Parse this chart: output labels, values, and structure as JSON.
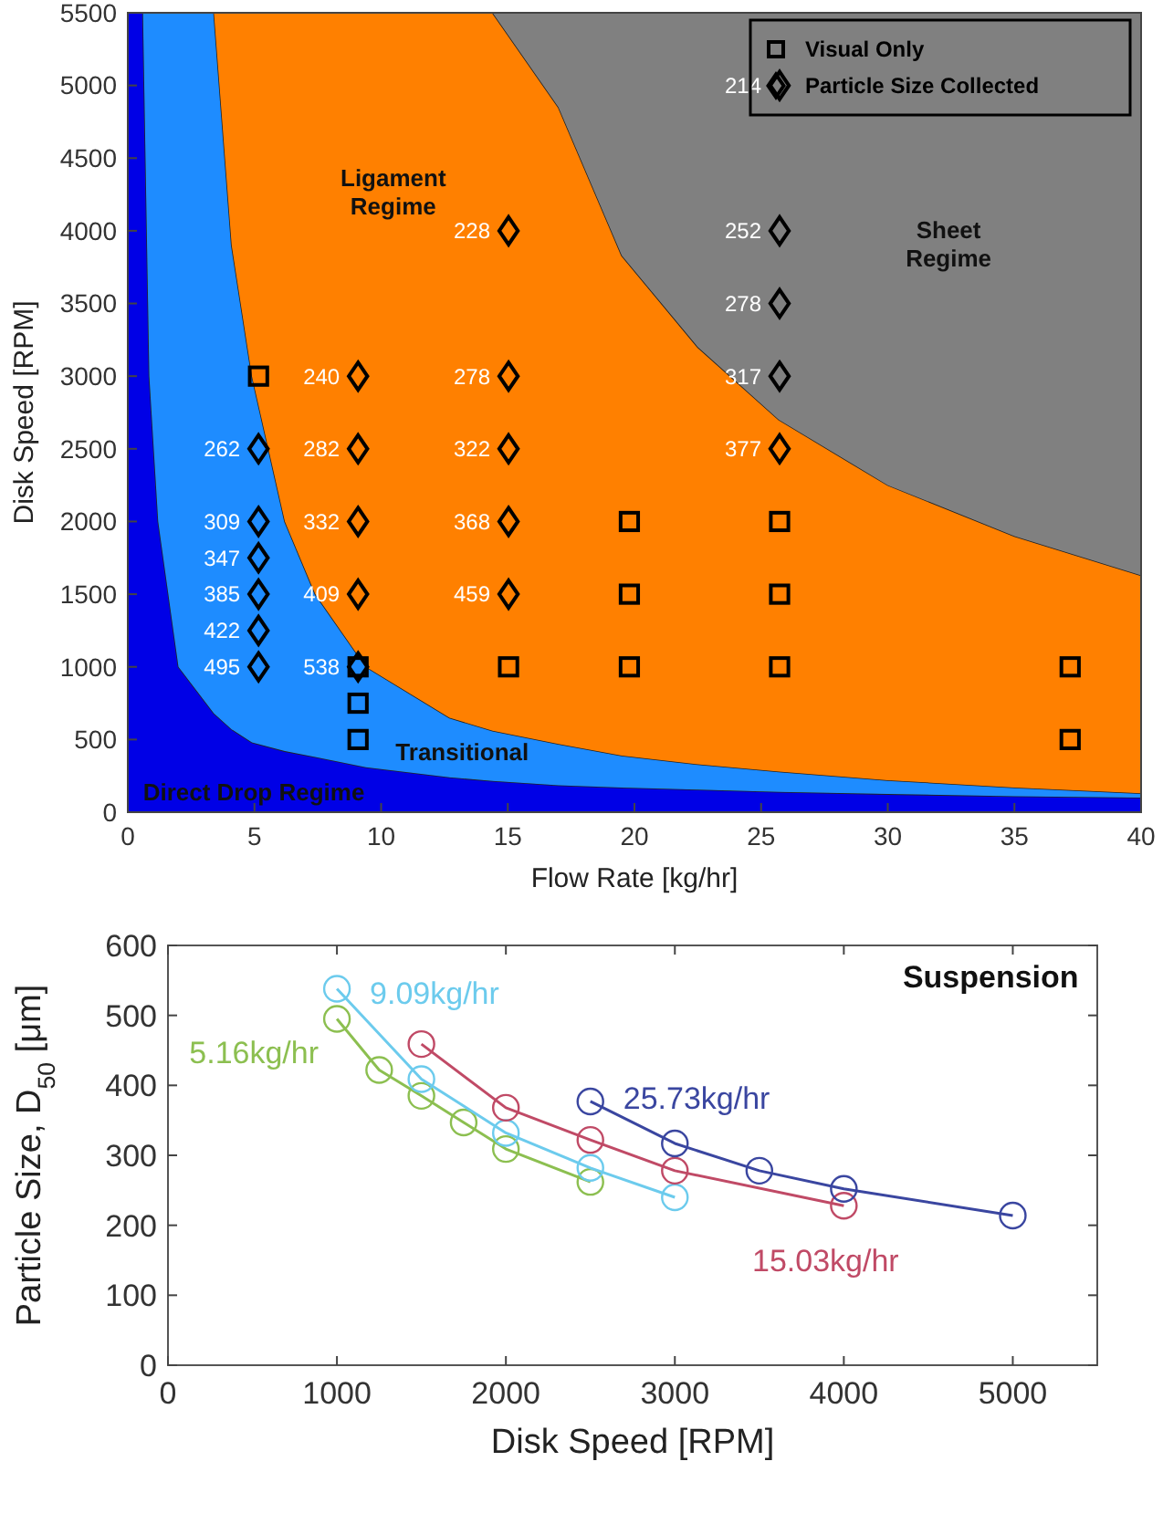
{
  "chart_data": [
    {
      "type": "area",
      "stacked": true,
      "xlabel": "Flow Rate [kg/hr]",
      "ylabel": "Disk Speed [RPM]",
      "xlim": [
        0,
        40
      ],
      "xticks": [
        0,
        5,
        10,
        15,
        20,
        25,
        30,
        35,
        40
      ],
      "ylim": [
        0,
        5500
      ],
      "yticks": [
        0,
        500,
        1000,
        1500,
        2000,
        2500,
        3000,
        3500,
        4000,
        4500,
        5000,
        5500
      ],
      "legend": "top right",
      "x": [
        0,
        0.6,
        0.85,
        1.2,
        2,
        3.4,
        4.1,
        4.9,
        6.2,
        7.4,
        9.4,
        12.7,
        14.4,
        17,
        19.5,
        22.5,
        25.7,
        30,
        35,
        40
      ],
      "annotations": [
        "Ligament\nRegime",
        "Sheet\nRegime",
        "Transitional",
        "Direct Drop Regime",
        {
          "text": "262",
          "x": 5.16,
          "y": 2500
        },
        {
          "text": "309",
          "x": 5.16,
          "y": 2000
        },
        {
          "text": "347",
          "x": 5.16,
          "y": 1750
        },
        {
          "text": "385",
          "x": 5.16,
          "y": 1500
        },
        {
          "text": "422",
          "x": 5.16,
          "y": 1250
        },
        {
          "text": "495",
          "x": 5.16,
          "y": 1000
        },
        {
          "text": "240",
          "x": 9.09,
          "y": 3000
        },
        {
          "text": "282",
          "x": 9.09,
          "y": 2500
        },
        {
          "text": "332",
          "x": 9.09,
          "y": 2000
        },
        {
          "text": "409",
          "x": 9.09,
          "y": 1500
        },
        {
          "text": "538",
          "x": 9.09,
          "y": 1000
        },
        {
          "text": "228",
          "x": 15.03,
          "y": 4000
        },
        {
          "text": "278",
          "x": 15.03,
          "y": 3000
        },
        {
          "text": "322",
          "x": 15.03,
          "y": 2500
        },
        {
          "text": "368",
          "x": 15.03,
          "y": 2000
        },
        {
          "text": "459",
          "x": 15.03,
          "y": 1500
        },
        {
          "text": "214",
          "x": 25.73,
          "y": 5000
        },
        {
          "text": "252",
          "x": 25.73,
          "y": 4000
        },
        {
          "text": "278",
          "x": 25.73,
          "y": 3500
        },
        {
          "text": "317",
          "x": 25.73,
          "y": 3000
        },
        {
          "text": "377",
          "x": 25.73,
          "y": 2500
        }
      ],
      "series": [
        {
          "color": "#0000e6",
          "values": [
            5500,
            5500,
            3000,
            2000,
            1000,
            680,
            570,
            480,
            420,
            380,
            310,
            240,
            215,
            185,
            170,
            155,
            140,
            125,
            110,
            100
          ]
        },
        {
          "color": "#1e8cff",
          "values": [
            0,
            0,
            2500,
            3500,
            4500,
            4820,
            3330,
            2520,
            1580,
            1120,
            690,
            410,
            345,
            285,
            220,
            175,
            140,
            95,
            60,
            30
          ]
        },
        {
          "color": "#ff8000",
          "values": [
            0,
            0,
            0,
            0,
            0,
            0,
            1600,
            2500,
            3500,
            4000,
            4500,
            4850,
            4940,
            4380,
            3440,
            2870,
            2420,
            2030,
            1730,
            1500
          ]
        },
        {
          "color": "#808080",
          "values": [
            0,
            0,
            0,
            0,
            0,
            0,
            0,
            0,
            0,
            0,
            0,
            0,
            0,
            650,
            1670,
            2300,
            2800,
            3250,
            3600,
            3870
          ]
        },
        {
          "type": "scatter",
          "name": "Visual Only",
          "marker": "square",
          "color": "#000000",
          "x": [
            5.16,
            9.09,
            9.09,
            9.09,
            15.03,
            19.8,
            19.8,
            19.8,
            25.73,
            25.73,
            25.73,
            37.2,
            37.2
          ],
          "values": [
            3000,
            1000,
            750,
            500,
            1000,
            2000,
            1500,
            1000,
            2000,
            1500,
            1000,
            1000,
            500
          ]
        },
        {
          "type": "scatter",
          "name": "Particle Size Collected",
          "marker": "diamond",
          "color": "#000000",
          "x": [
            5.16,
            5.16,
            5.16,
            5.16,
            5.16,
            5.16,
            9.09,
            9.09,
            9.09,
            9.09,
            9.09,
            15.03,
            15.03,
            15.03,
            15.03,
            15.03,
            25.73,
            25.73,
            25.73,
            25.73,
            25.73
          ],
          "values": [
            2500,
            2000,
            1750,
            1500,
            1250,
            1000,
            3000,
            2500,
            2000,
            1500,
            1000,
            4000,
            3000,
            2500,
            2000,
            1500,
            5000,
            4000,
            3500,
            3000,
            2500
          ]
        }
      ]
    },
    {
      "type": "line",
      "xlabel": "Disk Speed [RPM]",
      "ylabel": "Particle Size, D$_{50}$ [μm]",
      "xlim": [
        0,
        5500
      ],
      "xticks": [
        0,
        1000,
        2000,
        3000,
        4000,
        5000
      ],
      "ylim": [
        0,
        600
      ],
      "yticks": [
        0,
        100,
        200,
        300,
        400,
        500,
        600
      ],
      "marker": "circle",
      "annotations": [
        "Suspension"
      ],
      "series": [
        {
          "name": "5.16kg/hr",
          "color": "#8cbf50",
          "x": [
            1000,
            1250,
            1500,
            1750,
            2000,
            2500
          ],
          "values": [
            495,
            422,
            385,
            347,
            309,
            262
          ]
        },
        {
          "name": "9.09kg/hr",
          "color": "#6ccbed",
          "x": [
            1000,
            1500,
            2000,
            2500,
            3000
          ],
          "values": [
            538,
            409,
            332,
            282,
            240
          ]
        },
        {
          "name": "15.03kg/hr",
          "color": "#c04a66",
          "x": [
            1500,
            2000,
            2500,
            3000,
            4000
          ],
          "values": [
            459,
            368,
            322,
            278,
            228
          ]
        },
        {
          "name": "25.73kg/hr",
          "color": "#3a46a0",
          "x": [
            2500,
            3000,
            3500,
            4000,
            5000
          ],
          "values": [
            377,
            317,
            278,
            252,
            214
          ]
        }
      ]
    }
  ]
}
